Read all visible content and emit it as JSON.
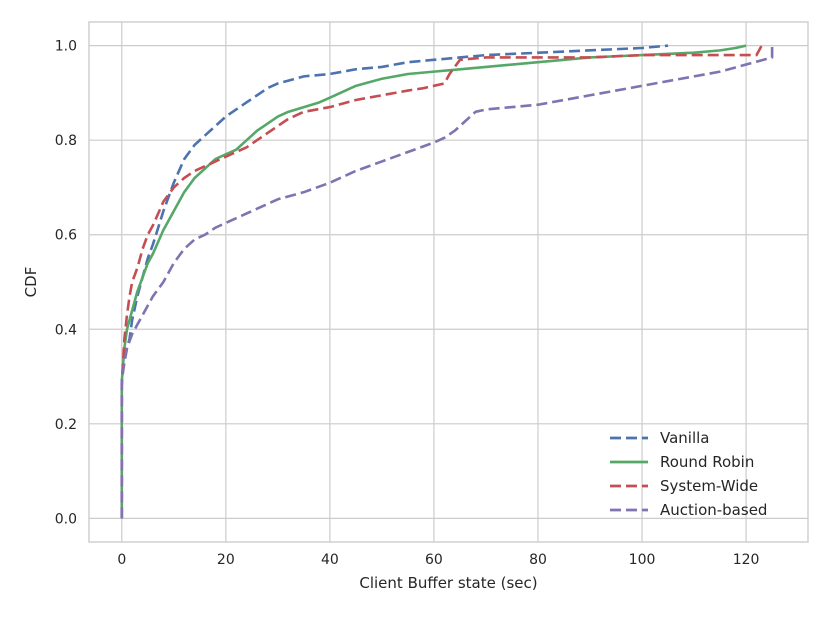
{
  "chart_data": {
    "type": "line",
    "title": "",
    "xlabel": "Client Buffer state (sec)",
    "ylabel": "CDF",
    "xlim": [
      -6.3,
      131.9
    ],
    "ylim": [
      -0.05,
      1.05
    ],
    "xticks": [
      0,
      20,
      40,
      60,
      80,
      100,
      120
    ],
    "yticks": [
      0.0,
      0.2,
      0.4,
      0.6,
      0.8,
      1.0
    ],
    "xtick_labels": [
      "0",
      "20",
      "40",
      "60",
      "80",
      "100",
      "120"
    ],
    "ytick_labels": [
      "0.0",
      "0.2",
      "0.4",
      "0.6",
      "0.8",
      "1.0"
    ],
    "grid": true,
    "legend_position": "lower-right",
    "series": [
      {
        "name": "Vanilla",
        "color": "#4c72b0",
        "dash": "dashed",
        "x": [
          0,
          0,
          0,
          0.5,
          1,
          1.5,
          2,
          3,
          4,
          5,
          6,
          8,
          10,
          12,
          14,
          16,
          18,
          20,
          22,
          24,
          26,
          28,
          30,
          35,
          40,
          45,
          50,
          55,
          60,
          65,
          70,
          80,
          90,
          100,
          105
        ],
        "y": [
          0.0,
          0.2,
          0.3,
          0.33,
          0.36,
          0.38,
          0.42,
          0.47,
          0.51,
          0.55,
          0.58,
          0.65,
          0.71,
          0.76,
          0.79,
          0.81,
          0.83,
          0.85,
          0.865,
          0.88,
          0.895,
          0.91,
          0.92,
          0.935,
          0.94,
          0.95,
          0.955,
          0.965,
          0.97,
          0.975,
          0.98,
          0.985,
          0.99,
          0.995,
          1.0
        ]
      },
      {
        "name": "Round Robin",
        "color": "#55a868",
        "dash": "solid",
        "x": [
          0,
          0,
          0,
          0.5,
          1,
          2,
          3,
          4,
          5,
          6,
          8,
          10,
          12,
          14,
          16,
          18,
          20,
          22,
          24,
          26,
          28,
          30,
          32,
          35,
          38,
          40,
          42,
          45,
          50,
          55,
          60,
          65,
          70,
          75,
          80,
          90,
          100,
          110,
          115,
          118,
          120
        ],
        "y": [
          0.0,
          0.2,
          0.29,
          0.36,
          0.4,
          0.44,
          0.48,
          0.51,
          0.54,
          0.56,
          0.61,
          0.65,
          0.69,
          0.72,
          0.74,
          0.76,
          0.77,
          0.78,
          0.8,
          0.82,
          0.835,
          0.85,
          0.86,
          0.87,
          0.88,
          0.89,
          0.9,
          0.915,
          0.93,
          0.94,
          0.945,
          0.95,
          0.955,
          0.96,
          0.965,
          0.975,
          0.98,
          0.985,
          0.99,
          0.995,
          1.0
        ]
      },
      {
        "name": "System-Wide",
        "color": "#c44e52",
        "dash": "dashed",
        "x": [
          0,
          0,
          0,
          0.5,
          1,
          1.5,
          2,
          3,
          4,
          5,
          6,
          8,
          10,
          12,
          14,
          16,
          18,
          20,
          22,
          24,
          26,
          28,
          30,
          32,
          35,
          40,
          45,
          50,
          55,
          58,
          60,
          62,
          63,
          64,
          65,
          70,
          80,
          90,
          100,
          110,
          118,
          122,
          123
        ],
        "y": [
          0.0,
          0.1,
          0.28,
          0.38,
          0.43,
          0.47,
          0.5,
          0.53,
          0.57,
          0.6,
          0.62,
          0.67,
          0.7,
          0.72,
          0.735,
          0.745,
          0.755,
          0.765,
          0.775,
          0.785,
          0.8,
          0.815,
          0.83,
          0.845,
          0.86,
          0.87,
          0.885,
          0.895,
          0.905,
          0.91,
          0.915,
          0.92,
          0.94,
          0.955,
          0.97,
          0.975,
          0.975,
          0.975,
          0.98,
          0.98,
          0.98,
          0.98,
          1.0
        ]
      },
      {
        "name": "Auction-based",
        "color": "#8172b2",
        "dash": "dashed",
        "x": [
          0,
          0,
          0,
          0.5,
          1,
          2,
          3,
          4,
          5,
          6,
          8,
          10,
          12,
          14,
          16,
          18,
          20,
          22,
          24,
          26,
          28,
          30,
          35,
          40,
          45,
          50,
          55,
          60,
          62,
          64,
          66,
          68,
          70,
          75,
          80,
          85,
          90,
          95,
          100,
          105,
          110,
          115,
          120,
          125,
          125
        ],
        "y": [
          0.0,
          0.1,
          0.29,
          0.33,
          0.36,
          0.39,
          0.41,
          0.43,
          0.45,
          0.47,
          0.5,
          0.54,
          0.57,
          0.59,
          0.6,
          0.615,
          0.625,
          0.635,
          0.645,
          0.655,
          0.665,
          0.675,
          0.69,
          0.71,
          0.735,
          0.755,
          0.775,
          0.795,
          0.805,
          0.82,
          0.84,
          0.86,
          0.865,
          0.87,
          0.875,
          0.885,
          0.895,
          0.905,
          0.915,
          0.925,
          0.935,
          0.945,
          0.96,
          0.975,
          1.0
        ]
      }
    ]
  }
}
